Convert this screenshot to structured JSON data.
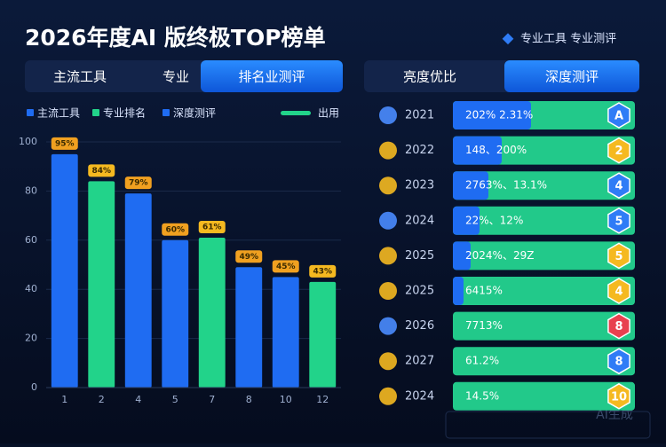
{
  "header": {
    "title": "2026年度AI  版终极TOP榜单",
    "tagline": "专业工具  专业测评"
  },
  "tabs_left": [
    "主流工具",
    "专业",
    "排名业测评"
  ],
  "tabs_right": [
    "亮度优比",
    "深度测评"
  ],
  "chart_data": {
    "type": "bar",
    "categories": [
      "1",
      "2",
      "4",
      "5",
      "7",
      "8",
      "10",
      "12"
    ],
    "values": [
      95,
      84,
      79,
      60,
      61,
      49,
      45,
      43
    ],
    "value_labels": [
      "95%",
      "84%",
      "79%",
      "60%",
      "61%",
      "49%",
      "45%",
      "43%"
    ],
    "colors": [
      "#1f6cf2",
      "#22d38a",
      "#1f6cf2",
      "#1f6cf2",
      "#22d38a",
      "#1f6cf2",
      "#1f6cf2",
      "#22d38a"
    ],
    "ylim": [
      0,
      100
    ],
    "yticks": [
      0,
      20,
      40,
      60,
      80,
      100
    ],
    "grid": true,
    "legend": [
      {
        "name": "主流工具",
        "color": "#1f6cf2"
      },
      {
        "name": "专业排名",
        "color": "#22d38a"
      },
      {
        "name": "深度测评",
        "color": "#1f6cf2"
      },
      {
        "name": "出用",
        "color": "#22d38a"
      }
    ]
  },
  "ranking": [
    {
      "year": "2021",
      "text": "202%  2.31%",
      "rank": "A",
      "badge_color": "#2f7cf6"
    },
    {
      "year": "2022",
      "text": "148、200%",
      "rank": "2",
      "badge_color": "#f5b920"
    },
    {
      "year": "2023",
      "text": "2763%、13.1%",
      "rank": "4",
      "badge_color": "#2f7cf6"
    },
    {
      "year": "2024",
      "text": "22%、12%",
      "rank": "5",
      "badge_color": "#2f7cf6"
    },
    {
      "year": "2025",
      "text": "2024%、29Z",
      "rank": "5",
      "badge_color": "#f5b920"
    },
    {
      "year": "2025",
      "text": "6415%",
      "rank": "4",
      "badge_color": "#f5b920"
    },
    {
      "year": "2026",
      "text": "7713%",
      "rank": "8",
      "badge_color": "#e8404f"
    },
    {
      "year": "2027",
      "text": "61.2%",
      "rank": "8",
      "badge_color": "#2f7cf6"
    },
    {
      "year": "2024",
      "text": "14.5%",
      "rank": "10",
      "badge_color": "#f5b920"
    }
  ],
  "watermark": "AI生成"
}
